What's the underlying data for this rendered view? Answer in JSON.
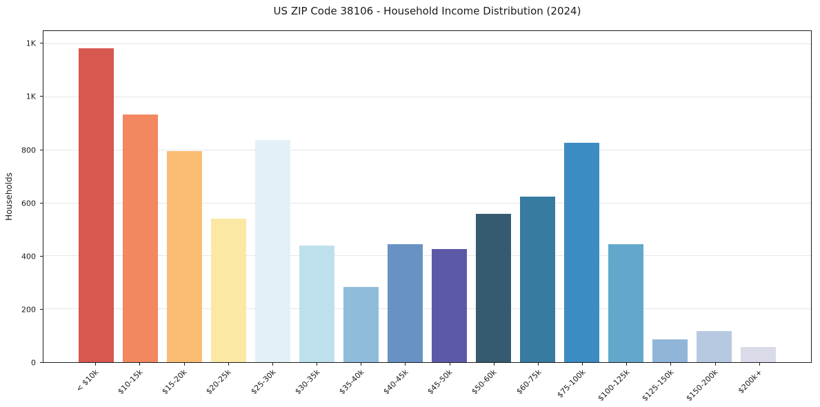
{
  "chart_data": {
    "type": "bar",
    "title": "US ZIP Code 38106 - Household Income Distribution (2024)",
    "xlabel": "",
    "ylabel": "Households",
    "categories": [
      "< $10k",
      "$10-15k",
      "$15-20k",
      "$20-25k",
      "$25-30k",
      "$30-35k",
      "$35-40k",
      "$40-45k",
      "$45-50k",
      "$50-60k",
      "$60-75k",
      "$75-100k",
      "$100-125k",
      "$125-150k",
      "$150-200k",
      "$200k+"
    ],
    "values": [
      1185,
      935,
      797,
      543,
      838,
      440,
      285,
      446,
      428,
      561,
      624,
      829,
      446,
      85,
      118,
      58
    ],
    "bar_colors": [
      "#d6584f",
      "#f3875f",
      "#fbbc74",
      "#fae8a4",
      "#e3f0f6",
      "#bee0ed",
      "#8fbcdb",
      "#6892c4",
      "#5c5aa7",
      "#365a70",
      "#377ba1",
      "#3a8cc3",
      "#63a8cc",
      "#90b5d8",
      "#b7c8e1",
      "#d9dbe8"
    ],
    "ylim": [
      0,
      1250
    ],
    "yticks": [
      {
        "value": 0,
        "label": "0"
      },
      {
        "value": 200,
        "label": "200"
      },
      {
        "value": 400,
        "label": "400"
      },
      {
        "value": 600,
        "label": "600"
      },
      {
        "value": 800,
        "label": "800"
      },
      {
        "value": 1000,
        "label": "1K"
      },
      {
        "value": 1200,
        "label": "1K"
      }
    ],
    "grid": "horizontal",
    "legend": "none",
    "colors": {
      "background": "#ffffff",
      "spine": "#1a1a1a",
      "gridline": "#e6e6e6",
      "text": "#1a1a1a"
    }
  }
}
